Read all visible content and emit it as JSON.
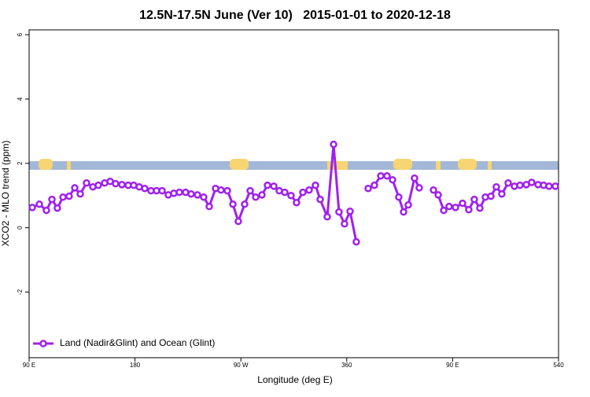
{
  "chart_data": {
    "type": "line",
    "title": "12.5N-17.5N June (Ver 10)   2015-01-01 to 2020-12-18",
    "xlabel": "Longitude (deg E)",
    "ylabel": "XCO2 - MLO trend (ppm)",
    "x": [
      92.7,
      98.7,
      104.7,
      109.4,
      114,
      118.8,
      124,
      128.8,
      133.5,
      138.8,
      144.2,
      148.8,
      154.2,
      158.9,
      163.5,
      168.9,
      174.2,
      178.9,
      183.6,
      188.3,
      193.6,
      198.3,
      203,
      208.3,
      213,
      217.7,
      223,
      227.7,
      233.1,
      238.4,
      243.1,
      248.5,
      253.1,
      258.5,
      263.2,
      267.8,
      273.2,
      277.9,
      282.6,
      287.9,
      292.6,
      298,
      302.6,
      307.3,
      312.6,
      317.3,
      322.7,
      328,
      333.4,
      337.4,
      343.4,
      348.8,
      353.4,
      358.1,
      362.8,
      368.1,
      373,
      378.2,
      383.5,
      388.9,
      394.2,
      398.9,
      404.2,
      408.3,
      412.3,
      417.6,
      421.6,
      427,
      433.7,
      437.7,
      442.4,
      447,
      452.4,
      458.4,
      463.7,
      468.4,
      473.1,
      477.8,
      482.5,
      487.1,
      491.8,
      497.2,
      502.5,
      507.2,
      512.6,
      517.2,
      522.6,
      527.3,
      531.9,
      537.3
    ],
    "series": [
      {
        "name": "Land (Nadir&Glint) and Ocean (Glint)",
        "color": "#a020f0",
        "values": [
          0.63,
          0.73,
          0.54,
          0.88,
          0.61,
          0.95,
          0.98,
          1.24,
          1.05,
          1.39,
          1.27,
          1.32,
          1.39,
          1.44,
          1.37,
          1.34,
          1.32,
          1.32,
          1.27,
          1.22,
          1.15,
          1.15,
          1.15,
          1.02,
          1.07,
          1.1,
          1.1,
          1.05,
          1.02,
          0.95,
          0.66,
          1.22,
          1.17,
          1.15,
          0.73,
          0.2,
          0.73,
          1.15,
          0.95,
          1.02,
          1.32,
          1.29,
          1.15,
          1.1,
          1.0,
          0.78,
          1.1,
          1.17,
          1.32,
          0.88,
          0.34,
          2.59,
          0.49,
          0.12,
          0.51,
          -0.44,
          null,
          1.22,
          1.32,
          1.61,
          1.61,
          1.49,
          0.95,
          0.49,
          0.71,
          1.54,
          1.24,
          null,
          1.17,
          1.02,
          0.54,
          0.66,
          0.63,
          0.76,
          0.56,
          0.88,
          0.61,
          0.95,
          0.98,
          1.27,
          1.05,
          1.39,
          1.29,
          1.32,
          1.34,
          1.41,
          1.34,
          1.32,
          1.29,
          1.29
        ]
      }
    ],
    "xlim": [
      90,
      540
    ],
    "ylim": [
      -4.04,
      6.15
    ],
    "xticks": [
      {
        "value": 90,
        "label": "90 E"
      },
      180,
      {
        "value": 270,
        "label": "90 W"
      },
      360,
      {
        "value": 450,
        "label": "90 E"
      },
      540
    ],
    "yticks": [
      -2,
      0,
      2,
      4,
      6
    ],
    "legend": "bottom-left"
  }
}
